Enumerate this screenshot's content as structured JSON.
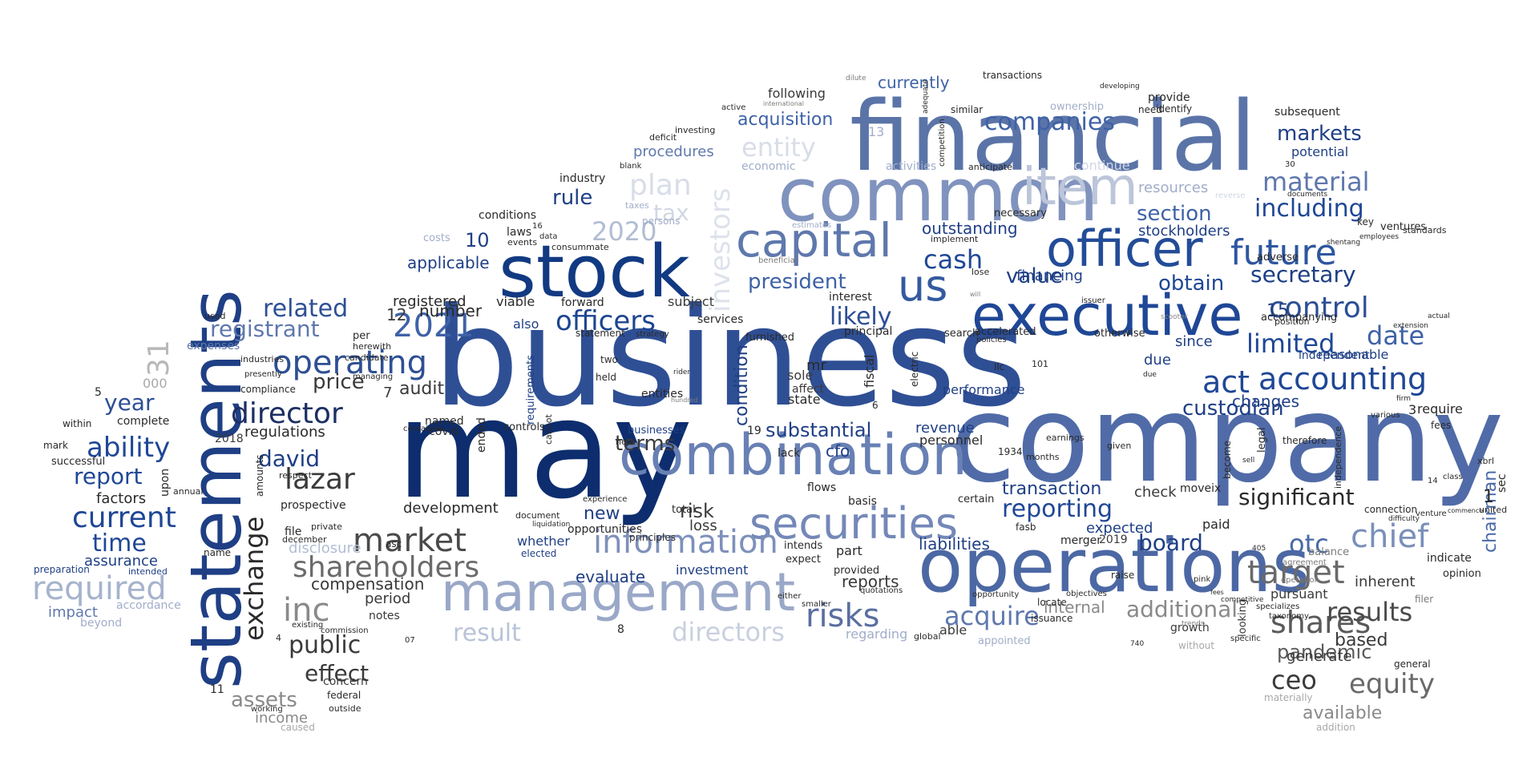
{
  "palette": {
    "navy": "#0d2d6e",
    "blue": "#1f4796",
    "mid_blue": "#3e62a6",
    "steel": "#5b74a8",
    "slate": "#7f8fb5",
    "light": "#aab6cf",
    "pale": "#cfd6e3",
    "gray": "#747474",
    "light_gray": "#a8a8a8",
    "dark": "#2a2a2a"
  },
  "words": [
    "business",
    "company",
    "may",
    "financial",
    "operations",
    "statements",
    "common",
    "stock",
    "management",
    "combination",
    "executive",
    "officer",
    "capital",
    "securities",
    "item",
    "us",
    "information",
    "future",
    "2021",
    "operating",
    "officers",
    "control",
    "shareholders",
    "required",
    "market",
    "inc",
    "director",
    "including",
    "risks",
    "current",
    "accounting",
    "act",
    "material",
    "companies",
    "ability",
    "cash",
    "likely",
    "public",
    "directors",
    "result",
    "shares",
    "target",
    "chief",
    "exchange",
    "equity",
    "results",
    "additional",
    "reporting",
    "limited",
    "2020",
    "plan",
    "entity",
    "investors",
    "tax",
    "related",
    "registrant",
    "lazar",
    "david",
    "report",
    "year",
    "time",
    "acquire",
    "date",
    "ceo",
    "board",
    "custodian",
    "secretary",
    "markets",
    "price",
    "terms",
    "significant",
    "31",
    "effect",
    "president",
    "rule",
    "pandemic",
    "section",
    "obtain",
    "substantial",
    "value",
    "otc",
    "transaction",
    "acquisition",
    "currently",
    "risk",
    "assets",
    "audit",
    "compensation",
    "reports",
    "regulations",
    "revenue",
    "liabilities",
    "available",
    "new",
    "evaluate",
    "changes",
    "applicable",
    "number",
    "registered",
    "10",
    "12",
    "15",
    "stockholders",
    "outstanding",
    "financing",
    "resources",
    "condition",
    "cfo",
    "check",
    "expected",
    "development",
    "factors",
    "assurance",
    "period",
    "impact",
    "accordance",
    "notes",
    "disclosure",
    "income",
    "concern",
    "internal",
    "generate",
    "based",
    "inherent",
    "indicate",
    "pursuant",
    "since",
    "due",
    "reasonable",
    "independent",
    "2019",
    "2018",
    "investment",
    "opportunities",
    "loss",
    "merger",
    "subject",
    "performance",
    "personnel",
    "fiscal",
    "state",
    "mr",
    "sole",
    "affect",
    "chairman",
    "sec",
    "continue",
    "economic",
    "activities",
    "following",
    "procedures",
    "industry",
    "laws",
    "conditions",
    "costs",
    "expenses",
    "complete",
    "within",
    "successful",
    "preparation",
    "name",
    "intended",
    "mark",
    "upon",
    "annual",
    "beyond",
    "federal",
    "caused",
    "outside",
    "viable",
    "also",
    "requirements",
    "entities",
    "controls",
    "businesses",
    "new",
    "whether",
    "elected",
    "principal",
    "interest",
    "two",
    "held",
    "services",
    "furnished",
    "lack",
    "flows",
    "basis",
    "provided",
    "intends",
    "expect",
    "part",
    "regarding",
    "appointed",
    "able",
    "growth",
    "moveix",
    "connection",
    "scooter",
    "paid",
    "become",
    "legal",
    "looking",
    "agreement",
    "opinion",
    "filer",
    "ventures",
    "position",
    "potential",
    "subsequent",
    "provide",
    "transactions",
    "need",
    "similar",
    "ownership",
    "identify",
    "forward",
    "covid",
    "named",
    "ended",
    "file",
    "prospective",
    "amounts",
    "per",
    "herewith",
    "industries",
    "used",
    "candidate",
    "compliance",
    "total",
    "principles",
    "experience",
    "locate",
    "issuance",
    "raise",
    "fasb",
    "months",
    "earnings",
    "given",
    "otherwise",
    "accelerated",
    "search",
    "policies",
    "llc",
    "101",
    "lose",
    "issuer",
    "accompanying",
    "adverse",
    "key",
    "necessary",
    "implement",
    "anticipate",
    "beneficial",
    "deficit",
    "investing",
    "blank",
    "taxes",
    "persons",
    "data",
    "consummate",
    "events",
    "private",
    "respect",
    "december",
    "working",
    "existing",
    "commission",
    "asc",
    "contained",
    "presently",
    "managing",
    "statement",
    "strategy",
    "cannot",
    "document",
    "liquidation",
    "due",
    "certain",
    "global",
    "opportunity",
    "objectives",
    "specific",
    "balance",
    "operation",
    "specializes",
    "taxonomy",
    "competitive",
    "general",
    "materially",
    "addition",
    "without",
    "trends",
    "fees",
    "united",
    "require",
    "various",
    "firm",
    "class",
    "standards",
    "employees",
    "dilute",
    "developing",
    "active",
    "international",
    "adequate",
    "competition",
    "electric",
    "quotations",
    "either",
    "smaller",
    "estimates",
    "reverse",
    "documents",
    "shentang",
    "rider",
    "actual",
    "extension",
    "sell",
    "therefore",
    "independence",
    "difficulty",
    "venture",
    "commence",
    "xbrl",
    "pink",
    "fees",
    "1934",
    "19",
    "hundred",
    "will",
    "7",
    "1",
    "5",
    "3",
    "13",
    "000",
    "11",
    "8",
    "6",
    "16",
    "14",
    "4",
    "07",
    "740",
    "405",
    "30"
  ]
}
